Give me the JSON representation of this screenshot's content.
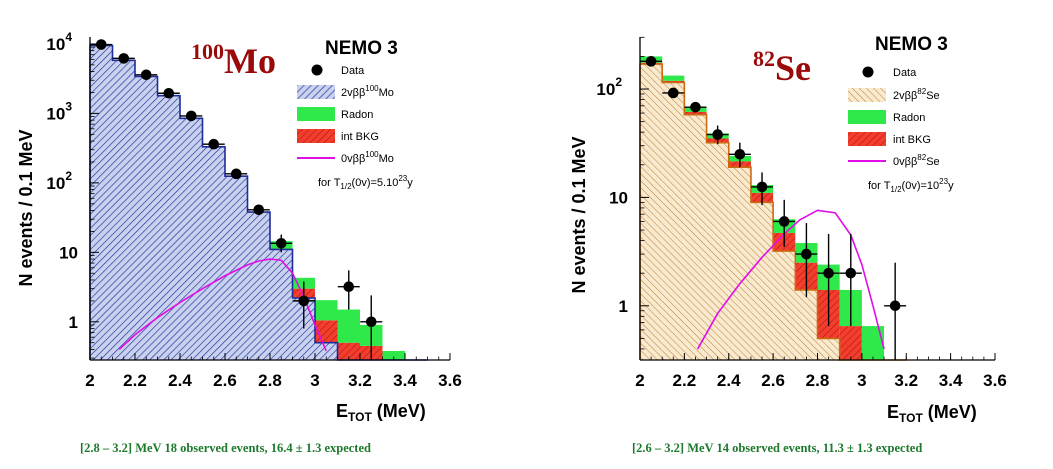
{
  "chart_data": [
    {
      "type": "histogram",
      "isotope_mass": "100",
      "isotope": "Mo",
      "experiment": "NEMO 3",
      "xlabel_main": "E",
      "xlabel_sub": "TOT",
      "xlabel_unit": " (MeV)",
      "ylabel": "N events / 0.1 MeV",
      "xlim": [
        2.0,
        3.6
      ],
      "ylog": true,
      "ylim_log10": [
        -0.55,
        4.1
      ],
      "x_ticks": [
        "2",
        "2.2",
        "2.4",
        "2.6",
        "2.8",
        "3",
        "3.2",
        "3.4",
        "3.6"
      ],
      "y_ticks": [
        {
          "value": 10000,
          "base": "10",
          "exp": "4"
        },
        {
          "value": 1000,
          "base": "10",
          "exp": "3"
        },
        {
          "value": 100,
          "base": "10",
          "exp": "2"
        },
        {
          "value": 10,
          "base": "10",
          "exp": ""
        },
        {
          "value": 1,
          "base": "1",
          "exp": ""
        }
      ],
      "bin_edges": [
        2.0,
        2.1,
        2.2,
        2.3,
        2.4,
        2.5,
        2.6,
        2.7,
        2.8,
        2.9,
        3.0,
        3.1,
        3.2,
        3.3,
        3.4,
        3.5
      ],
      "series": [
        {
          "name": "2vββ",
          "role": "signal_2v",
          "values": [
            9500,
            5800,
            3400,
            1800,
            850,
            330,
            125,
            38,
            11,
            2.2,
            0.5,
            0.0,
            0.0,
            0.0,
            0.0
          ]
        },
        {
          "name": "Radon",
          "role": "radon",
          "values": [
            0.0,
            0.0,
            0.0,
            0.0,
            0.0,
            0.0,
            0.0,
            0.0,
            3.5,
            1.3,
            1.0,
            1.0,
            0.45,
            0.18,
            0.1
          ]
        },
        {
          "name": "int BKG",
          "role": "bkg",
          "values": [
            0.0,
            0.0,
            0.0,
            0.0,
            0.0,
            0.0,
            0.0,
            0.0,
            0.0,
            0.8,
            0.55,
            0.5,
            0.45,
            0.2,
            0.0
          ]
        }
      ],
      "data_points": [
        {
          "x": 2.05,
          "y": 9800
        },
        {
          "x": 2.15,
          "y": 6200
        },
        {
          "x": 2.25,
          "y": 3600
        },
        {
          "x": 2.35,
          "y": 1950
        },
        {
          "x": 2.45,
          "y": 920
        },
        {
          "x": 2.55,
          "y": 360
        },
        {
          "x": 2.65,
          "y": 135
        },
        {
          "x": 2.75,
          "y": 41
        },
        {
          "x": 2.85,
          "y": 13.5,
          "err_lo": 10,
          "err_hi": 18
        },
        {
          "x": 2.95,
          "y": 2.0,
          "err_lo": 0.8,
          "err_hi": 3.8
        },
        {
          "x": 3.15,
          "y": 3.2,
          "err_lo": 1.5,
          "err_hi": 5.5
        },
        {
          "x": 3.25,
          "y": 1.0,
          "err_lo": 0.3,
          "err_hi": 2.4
        }
      ],
      "zero_nu_curve": {
        "x": [
          2.13,
          2.2,
          2.3,
          2.4,
          2.5,
          2.6,
          2.7,
          2.75,
          2.8,
          2.85,
          2.9,
          2.95,
          3.0,
          3.05
        ],
        "y": [
          0.4,
          0.65,
          1.15,
          1.9,
          3.0,
          4.6,
          6.6,
          7.5,
          8.0,
          7.7,
          5.0,
          2.3,
          0.9,
          0.38
        ]
      },
      "legend": {
        "data": "Data",
        "two_nu_main": "2vββ",
        "two_nu_sup": "100",
        "two_nu_el": "Mo",
        "radon": "Radon",
        "bkg": "int BKG",
        "zero_nu_main": "0vββ",
        "zero_nu_sup": "100",
        "zero_nu_el": "Mo",
        "half_life_pre": "for T",
        "half_life_sub": "1/2",
        "half_life_mid": "(0v)=5.10",
        "half_life_sup": "23",
        "half_life_post": "y"
      },
      "caption": "[2.8 – 3.2] MeV  18 observed events,  16.4 ± 1.3 expected"
    },
    {
      "type": "histogram",
      "isotope_mass": "82",
      "isotope": "Se",
      "experiment": "NEMO 3",
      "xlabel_main": "E",
      "xlabel_sub": "TOT",
      "xlabel_unit": " (MeV)",
      "ylabel": "N events / 0.1 MeV",
      "xlim": [
        2.0,
        3.6
      ],
      "ylog": true,
      "ylim_log10": [
        -0.5,
        2.48
      ],
      "x_ticks": [
        "2",
        "2.2",
        "2.4",
        "2.6",
        "2.8",
        "3",
        "3.2",
        "3.4",
        "3.6"
      ],
      "y_ticks": [
        {
          "value": 100,
          "base": "10",
          "exp": "2"
        },
        {
          "value": 10,
          "base": "10",
          "exp": ""
        },
        {
          "value": 1,
          "base": "1",
          "exp": ""
        }
      ],
      "bin_edges": [
        2.0,
        2.1,
        2.2,
        2.3,
        2.4,
        2.5,
        2.6,
        2.7,
        2.8,
        2.9,
        3.0,
        3.1,
        3.2
      ],
      "series": [
        {
          "name": "2vββ",
          "role": "signal_2v",
          "values": [
            170,
            115,
            58,
            32,
            19,
            9,
            3.2,
            1.4,
            0.5,
            0.0,
            0.0,
            0.0
          ]
        },
        {
          "name": "Radon",
          "role": "radon",
          "values": [
            25,
            14,
            7.5,
            4.0,
            2.6,
            2.0,
            1.6,
            1.3,
            1.0,
            0.75,
            0.45,
            0.15
          ]
        },
        {
          "name": "int BKG",
          "role": "bkg",
          "values": [
            5,
            4,
            3.5,
            3.0,
            2.5,
            2.0,
            1.5,
            1.1,
            0.9,
            0.65,
            0.2,
            0.0
          ]
        }
      ],
      "data_points": [
        {
          "x": 2.05,
          "y": 180
        },
        {
          "x": 2.15,
          "y": 92
        },
        {
          "x": 2.25,
          "y": 68
        },
        {
          "x": 2.35,
          "y": 38,
          "err_lo": 31,
          "err_hi": 46
        },
        {
          "x": 2.45,
          "y": 25,
          "err_lo": 19,
          "err_hi": 32
        },
        {
          "x": 2.55,
          "y": 12.5,
          "err_lo": 8.5,
          "err_hi": 17
        },
        {
          "x": 2.65,
          "y": 6.0,
          "err_lo": 3.5,
          "err_hi": 9.5
        },
        {
          "x": 2.75,
          "y": 3.0,
          "err_lo": 1.2,
          "err_hi": 5.8
        },
        {
          "x": 2.85,
          "y": 2.0,
          "err_lo": 0.65,
          "err_hi": 4.6
        },
        {
          "x": 2.95,
          "y": 2.0,
          "err_lo": 0.65,
          "err_hi": 4.6
        },
        {
          "x": 3.15,
          "y": 1.0,
          "err_lo": 0.3,
          "err_hi": 2.5
        }
      ],
      "zero_nu_curve": {
        "x": [
          2.26,
          2.35,
          2.45,
          2.55,
          2.65,
          2.72,
          2.8,
          2.88,
          2.95,
          3.0,
          3.05,
          3.1
        ],
        "y": [
          0.4,
          0.85,
          1.6,
          2.8,
          4.6,
          6.2,
          7.6,
          7.2,
          4.5,
          2.4,
          1.0,
          0.4
        ]
      },
      "legend": {
        "data": "Data",
        "two_nu_main": "2vββ",
        "two_nu_sup": "82",
        "two_nu_el": "Se",
        "radon": "Radon",
        "bkg": "int BKG",
        "zero_nu_main": "0vββ",
        "zero_nu_sup": "82",
        "zero_nu_el": "Se",
        "half_life_pre": "for T",
        "half_life_sub": "1/2",
        "half_life_mid": "(0v)=10",
        "half_life_sup": "23",
        "half_life_post": "y"
      },
      "caption": "[2.6 – 3.2] MeV  14 observed events, 11.3 ± 1.3 expected"
    }
  ],
  "colors": {
    "signal_fill": "#c8d2ee",
    "signal_hatch": "#1f2d9a",
    "signal_line": "#1f2d9a",
    "signal2_fill": "#f8e9cf",
    "signal2_hatch": "#c2893d",
    "signal2_line": "#cc6a10",
    "radon": "#2fe84a",
    "bkg": "#f33e2e",
    "bkg_hatch": "#a50f0f",
    "zero_nu": "#e00ee6",
    "data": "#000000",
    "isotope": "#9b0a0a",
    "caption": "#1d7a2c"
  }
}
